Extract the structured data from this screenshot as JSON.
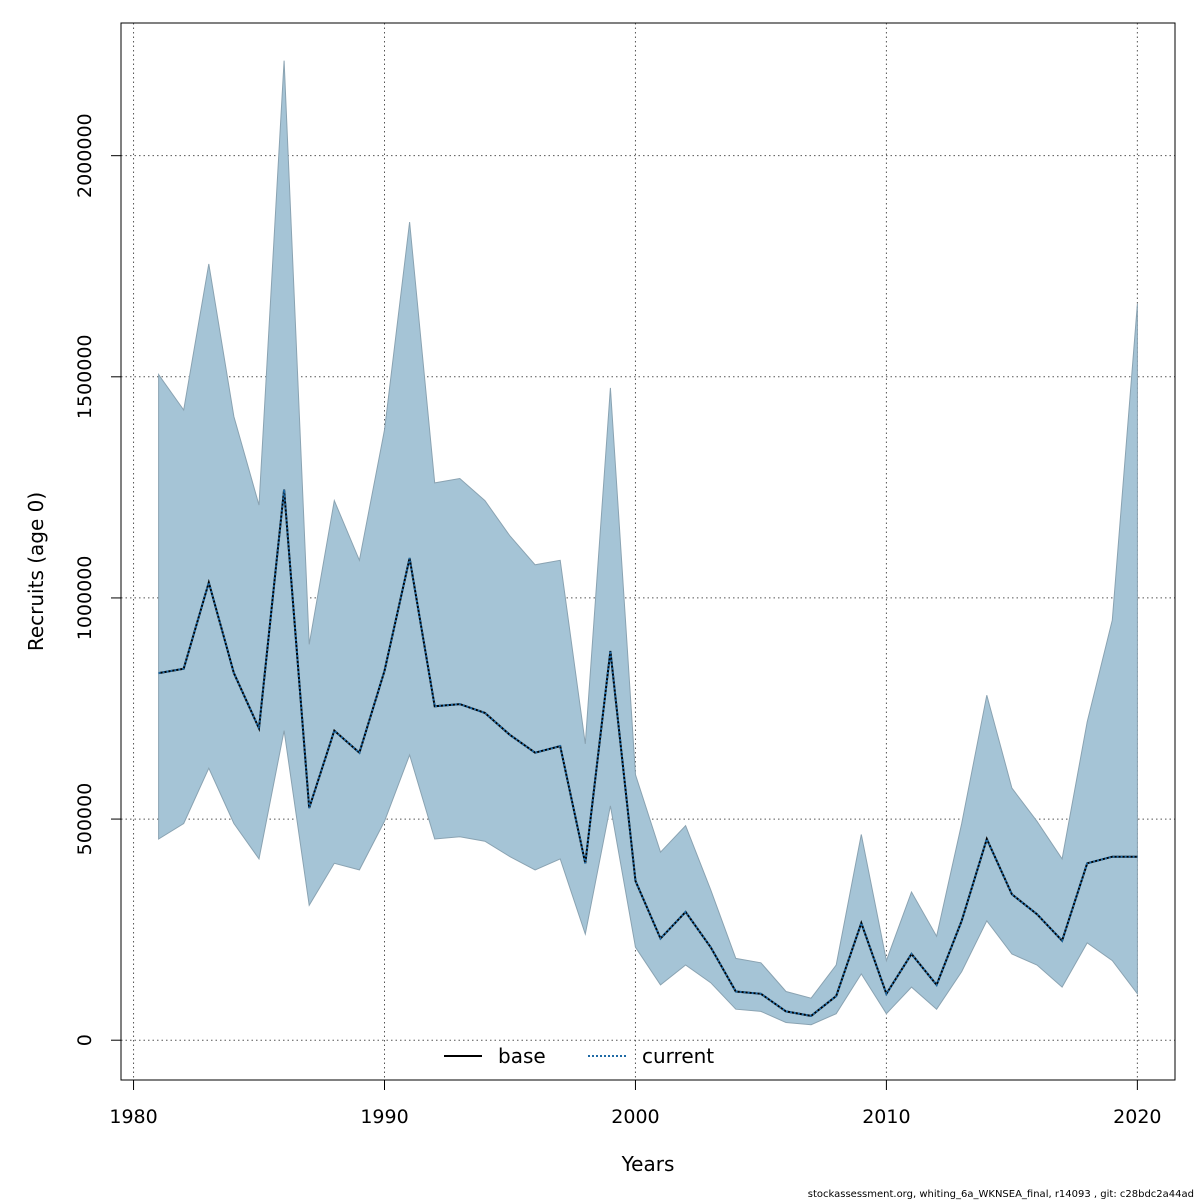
{
  "chart_data": {
    "type": "line",
    "xlabel": "Years",
    "ylabel": "Recruits (age 0)",
    "xlim": [
      1979.5,
      2021.5
    ],
    "ylim": [
      -90000,
      2300000
    ],
    "x_ticks": [
      1980,
      1990,
      2000,
      2010,
      2020
    ],
    "y_ticks": [
      0,
      500000,
      1000000,
      1500000,
      2000000
    ],
    "x_tick_labels": [
      "1980",
      "1990",
      "2000",
      "2010",
      "2020"
    ],
    "y_tick_labels": [
      "0",
      "500000",
      "1000000",
      "1500000",
      "2000000"
    ],
    "grid": true,
    "legend_position": "bottom-center",
    "x": [
      1981,
      1982,
      1983,
      1984,
      1985,
      1986,
      1987,
      1988,
      1989,
      1990,
      1991,
      1992,
      1993,
      1994,
      1995,
      1996,
      1997,
      1998,
      1999,
      2000,
      2001,
      2002,
      2003,
      2004,
      2005,
      2006,
      2007,
      2008,
      2009,
      2010,
      2011,
      2012,
      2013,
      2014,
      2015,
      2016,
      2017,
      2018,
      2019,
      2020
    ],
    "band": {
      "upper": [
        1505000,
        1425000,
        1755000,
        1410000,
        1210000,
        2215000,
        895000,
        1220000,
        1085000,
        1380000,
        1850000,
        1260000,
        1270000,
        1220000,
        1140000,
        1075000,
        1085000,
        670000,
        1475000,
        600000,
        425000,
        485000,
        340000,
        185000,
        175000,
        110000,
        95000,
        170000,
        465000,
        180000,
        335000,
        235000,
        490000,
        780000,
        570000,
        495000,
        410000,
        720000,
        950000,
        1665000
      ],
      "lower": [
        455000,
        490000,
        615000,
        490000,
        410000,
        700000,
        305000,
        400000,
        385000,
        495000,
        645000,
        455000,
        460000,
        450000,
        415000,
        385000,
        410000,
        240000,
        530000,
        210000,
        125000,
        170000,
        130000,
        70000,
        65000,
        40000,
        35000,
        60000,
        150000,
        60000,
        120000,
        70000,
        155000,
        270000,
        195000,
        170000,
        120000,
        220000,
        180000,
        105000
      ],
      "fill_color": "#a5c4d6",
      "stroke_color": "#8aa3b2"
    },
    "series": [
      {
        "name": "base",
        "line_style": "solid",
        "color": "#000000",
        "values": [
          830000,
          840000,
          1035000,
          830000,
          705000,
          1245000,
          525000,
          700000,
          650000,
          835000,
          1090000,
          755000,
          760000,
          740000,
          690000,
          650000,
          665000,
          400000,
          880000,
          360000,
          230000,
          290000,
          210000,
          110000,
          105000,
          65000,
          55000,
          100000,
          265000,
          105000,
          195000,
          125000,
          270000,
          455000,
          330000,
          285000,
          225000,
          400000,
          415000,
          415000
        ]
      },
      {
        "name": "current",
        "line_style": "dotted",
        "color": "#1f6aa5",
        "values": [
          830000,
          840000,
          1035000,
          830000,
          705000,
          1245000,
          525000,
          700000,
          650000,
          835000,
          1090000,
          755000,
          760000,
          740000,
          690000,
          650000,
          665000,
          400000,
          880000,
          360000,
          230000,
          290000,
          210000,
          110000,
          105000,
          65000,
          55000,
          100000,
          265000,
          105000,
          195000,
          125000,
          270000,
          455000,
          330000,
          285000,
          225000,
          400000,
          415000,
          415000
        ]
      }
    ],
    "footer": "stockassessment.org, whiting_6a_WKNSEA_final, r14093 , git: c28bdc2a44ad"
  }
}
